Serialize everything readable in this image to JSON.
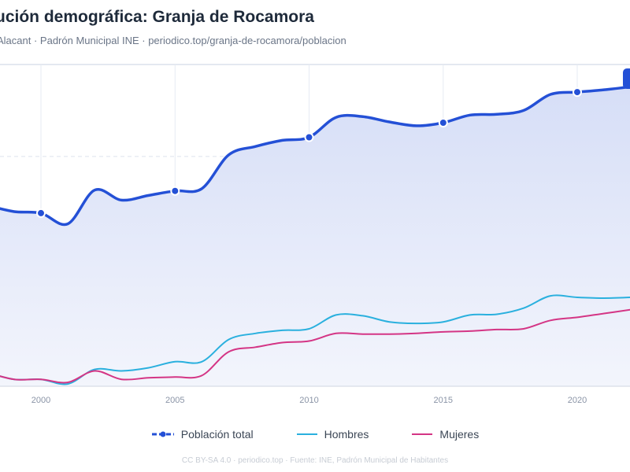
{
  "header": {
    "title": "ución demográfica: Granja de Rocamora",
    "subtitle": "Alacant · Padrón Municipal INE · periodico.top/granja-de-rocamora/poblacion"
  },
  "footer": {
    "credit": "CC BY-SA 4.0 · periodico.top · Fuente: INE, Padrón Municipal de Habitantes"
  },
  "colors": {
    "total": "#2450d6",
    "total_fill": "#d6def7",
    "hombres": "#2ab0de",
    "mujeres": "#d43585",
    "grid": "#dde3ee",
    "axis_text": "#8a94a6"
  },
  "chart_data": {
    "type": "line",
    "xlim": [
      1998.5,
      2022
    ],
    "ylim": [
      0,
      2100
    ],
    "x_ticks": [
      "2000",
      "2005",
      "2010",
      "2015",
      "2020"
    ],
    "grid": true,
    "legend_position": "bottom-center",
    "x": [
      1998,
      1999,
      2000,
      2001,
      2002,
      2003,
      2004,
      2005,
      2006,
      2007,
      2008,
      2009,
      2010,
      2011,
      2012,
      2013,
      2014,
      2015,
      2016,
      2017,
      2018,
      2019,
      2020,
      2021,
      2022
    ],
    "series": [
      {
        "name": "Población total",
        "key": "total",
        "values": [
          1180,
          1140,
          1130,
          1060,
          1280,
          1215,
          1245,
          1275,
          1290,
          1510,
          1565,
          1605,
          1625,
          1755,
          1760,
          1725,
          1700,
          1720,
          1770,
          1775,
          1800,
          1905,
          1920,
          1935,
          1955
        ],
        "markers": [
          2000,
          2005,
          2010,
          2015,
          2020
        ]
      },
      {
        "name": "Hombres",
        "key": "hombres",
        "values": [
          90,
          45,
          45,
          15,
          110,
          100,
          120,
          160,
          160,
          305,
          345,
          365,
          375,
          465,
          460,
          420,
          410,
          420,
          465,
          470,
          510,
          590,
          580,
          575,
          580
        ]
      },
      {
        "name": "Mujeres",
        "key": "mujeres",
        "values": [
          90,
          45,
          45,
          25,
          100,
          45,
          55,
          60,
          70,
          225,
          255,
          285,
          295,
          345,
          340,
          340,
          345,
          355,
          360,
          370,
          375,
          430,
          450,
          475,
          500
        ]
      }
    ]
  }
}
